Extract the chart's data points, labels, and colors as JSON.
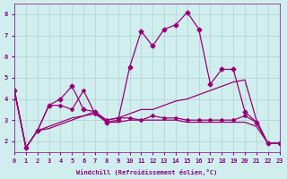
{
  "xlabel": "Windchill (Refroidissement éolien,°C)",
  "ylabel": "",
  "background_color": "#d0eeee",
  "grid_color": "#b0d0d0",
  "line_color": "#990077",
  "xlim": [
    0,
    23
  ],
  "ylim": [
    1.5,
    8.5
  ],
  "xticks": [
    0,
    1,
    2,
    3,
    4,
    5,
    6,
    7,
    8,
    9,
    10,
    11,
    12,
    13,
    14,
    15,
    16,
    17,
    18,
    19,
    20,
    21,
    22,
    23
  ],
  "yticks": [
    2,
    3,
    4,
    5,
    6,
    7,
    8
  ],
  "series": {
    "line1_x": [
      0,
      1,
      2,
      3,
      4,
      5,
      6,
      7,
      8,
      9,
      10,
      11,
      12,
      13,
      14,
      15,
      16,
      17,
      18,
      19,
      20,
      21,
      22,
      23
    ],
    "line1_y": [
      4.4,
      1.7,
      2.5,
      3.7,
      3.7,
      3.5,
      4.4,
      3.3,
      3.0,
      3.1,
      3.1,
      3.0,
      3.2,
      3.1,
      3.1,
      3.0,
      3.0,
      3.0,
      3.0,
      3.0,
      3.2,
      2.9,
      1.9,
      1.9
    ],
    "line2_x": [
      0,
      1,
      2,
      3,
      4,
      5,
      6,
      7,
      8,
      9,
      10,
      11,
      12,
      13,
      14,
      15,
      16,
      17,
      18,
      19,
      20,
      21,
      22,
      23
    ],
    "line2_y": [
      4.4,
      1.7,
      2.5,
      3.7,
      4.0,
      4.6,
      3.5,
      3.4,
      2.9,
      3.0,
      5.5,
      7.2,
      6.5,
      7.3,
      7.5,
      8.1,
      7.3,
      4.7,
      5.4,
      5.4,
      3.4,
      2.9,
      1.9,
      1.9
    ],
    "line3_x": [
      0,
      1,
      2,
      3,
      4,
      5,
      6,
      7,
      8,
      9,
      10,
      11,
      12,
      13,
      14,
      15,
      16,
      17,
      18,
      19,
      20,
      21,
      22,
      23
    ],
    "line3_y": [
      4.4,
      1.7,
      2.5,
      2.6,
      2.8,
      3.0,
      3.2,
      3.4,
      3.0,
      3.1,
      3.3,
      3.5,
      3.5,
      3.7,
      3.9,
      4.0,
      4.2,
      4.4,
      4.6,
      4.8,
      4.9,
      3.0,
      1.9,
      1.9
    ],
    "line4_x": [
      0,
      1,
      2,
      3,
      4,
      5,
      6,
      7,
      8,
      9,
      10,
      11,
      12,
      13,
      14,
      15,
      16,
      17,
      18,
      19,
      20,
      21,
      22,
      23
    ],
    "line4_y": [
      4.4,
      1.7,
      2.5,
      2.7,
      2.9,
      3.1,
      3.2,
      3.3,
      2.9,
      2.9,
      3.0,
      3.0,
      3.0,
      3.0,
      3.0,
      2.9,
      2.9,
      2.9,
      2.9,
      2.9,
      2.9,
      2.7,
      1.9,
      1.9
    ]
  }
}
